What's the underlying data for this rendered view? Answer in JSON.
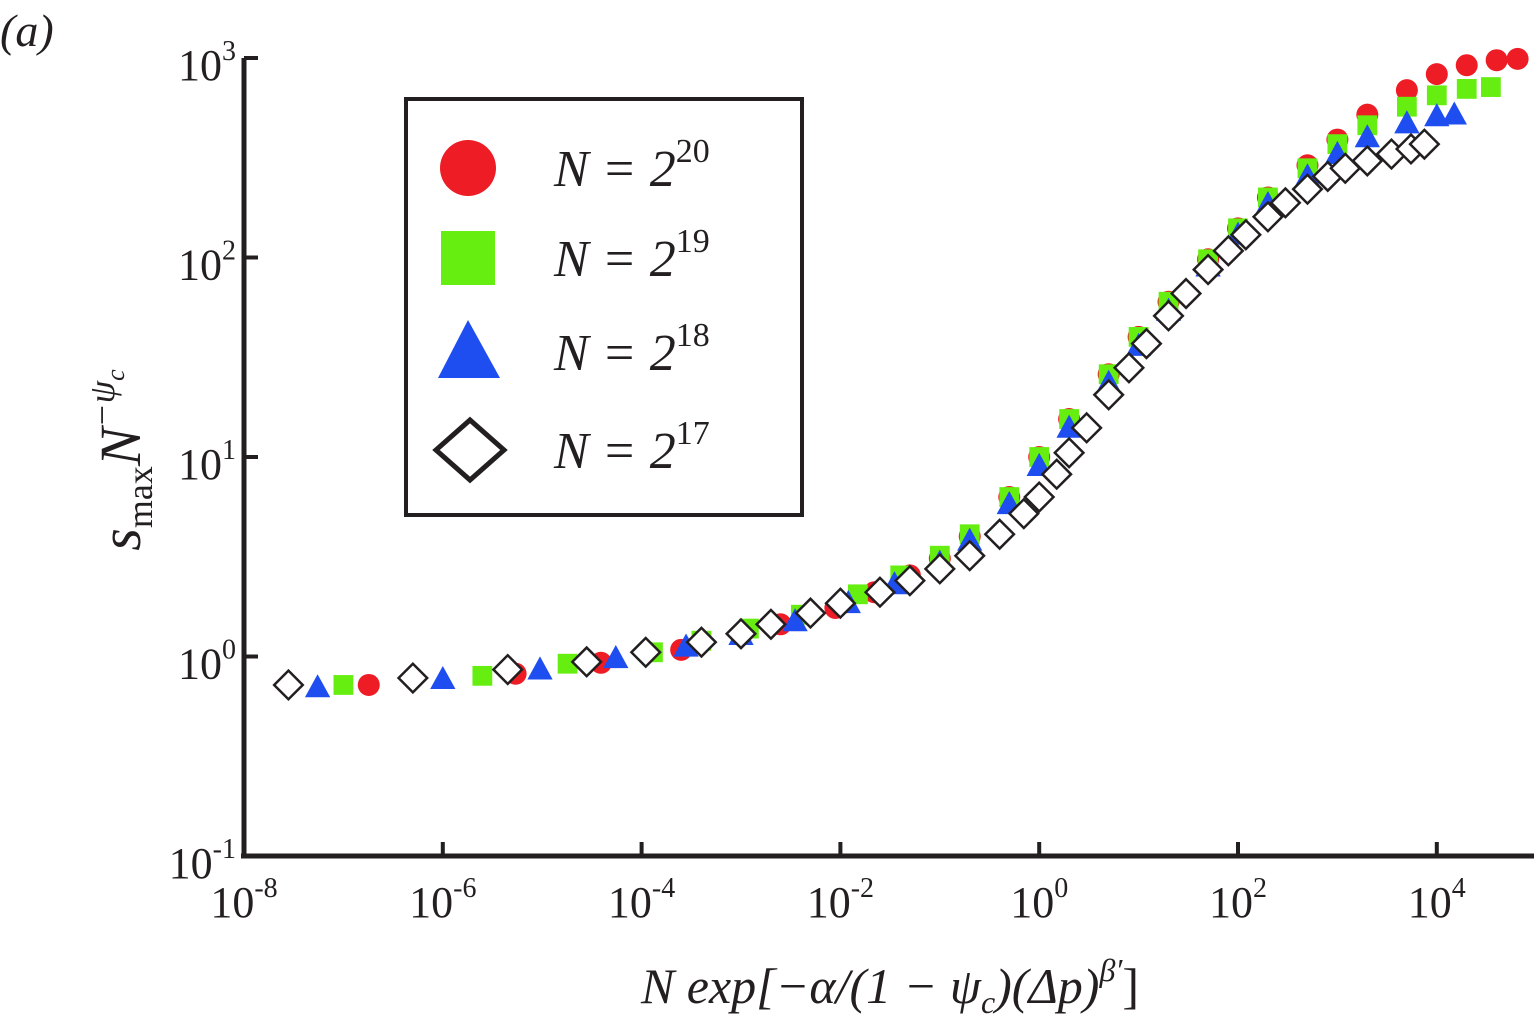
{
  "chart_data": {
    "type": "scatter",
    "panel_label": "(a)",
    "x_scale": "log",
    "y_scale": "log",
    "xlim": [
      1e-08,
      100000.0
    ],
    "ylim": [
      0.1,
      1000
    ],
    "xlabel": {
      "main": "N exp[−α/(1 − ψ",
      "sub": "c",
      "mid": ")(Δp)",
      "sup": "β′",
      "end": "]"
    },
    "ylabel": {
      "main": "s",
      "sub": "max",
      "mid": "N",
      "sup": "−ψ",
      "supsub": "c"
    },
    "x_ticks": [
      {
        "base": "10",
        "exp": "-8",
        "value": 1e-08
      },
      {
        "base": "10",
        "exp": "-6",
        "value": 1e-06
      },
      {
        "base": "10",
        "exp": "-4",
        "value": 0.0001
      },
      {
        "base": "10",
        "exp": "-2",
        "value": 0.01
      },
      {
        "base": "10",
        "exp": "0",
        "value": 1
      },
      {
        "base": "10",
        "exp": "2",
        "value": 100
      },
      {
        "base": "10",
        "exp": "4",
        "value": 10000
      }
    ],
    "y_ticks": [
      {
        "base": "10",
        "exp": "-1",
        "value": 0.1
      },
      {
        "base": "10",
        "exp": "0",
        "value": 1
      },
      {
        "base": "10",
        "exp": "1",
        "value": 10
      },
      {
        "base": "10",
        "exp": "2",
        "value": 100
      },
      {
        "base": "10",
        "exp": "3",
        "value": 1000
      }
    ],
    "legend": {
      "position": "top-left"
    },
    "series": [
      {
        "name": "N = 2^20",
        "legend_base": "N = 2",
        "legend_exp": "20",
        "marker": "circle",
        "color": "#ee1c24",
        "filled": true,
        "x": [
          1.8e-07,
          5.4e-06,
          3.9e-05,
          0.00025,
          0.0025,
          0.0089,
          0.022,
          0.05,
          0.1,
          0.2,
          0.5,
          1,
          2,
          5,
          10,
          20,
          50,
          100,
          200,
          500,
          1000,
          2000,
          5000,
          10000,
          20000,
          40000,
          65000
        ],
        "y": [
          0.72,
          0.82,
          0.93,
          1.08,
          1.45,
          1.75,
          2.1,
          2.55,
          3.1,
          4.0,
          6.3,
          10.0,
          15.5,
          26,
          40,
          60,
          98,
          140,
          200,
          290,
          390,
          520,
          690,
          830,
          920,
          975,
          990
        ]
      },
      {
        "name": "N = 2^19",
        "legend_base": "N = 2",
        "legend_exp": "19",
        "marker": "square",
        "color": "#66ee11",
        "filled": true,
        "x": [
          1e-07,
          2.5e-06,
          1.8e-05,
          0.00013,
          0.0004,
          0.0012,
          0.004,
          0.015,
          0.04,
          0.1,
          0.2,
          0.5,
          1,
          2,
          5,
          10,
          20,
          50,
          100,
          200,
          500,
          1000,
          2000,
          5000,
          10000,
          20000,
          35000
        ],
        "y": [
          0.72,
          0.8,
          0.92,
          1.05,
          1.2,
          1.38,
          1.62,
          2.05,
          2.55,
          3.2,
          4.1,
          6.3,
          10.0,
          15.5,
          26,
          40,
          60,
          98,
          140,
          200,
          280,
          370,
          460,
          570,
          650,
          700,
          715
        ]
      },
      {
        "name": "N = 2^18",
        "legend_base": "N = 2",
        "legend_exp": "18",
        "marker": "triangle",
        "color": "#1f4ef0",
        "filled": true,
        "x": [
          5.5e-08,
          1e-06,
          9.5e-06,
          5.5e-05,
          0.00028,
          0.001,
          0.0035,
          0.012,
          0.035,
          0.1,
          0.2,
          0.5,
          1,
          2,
          5,
          10,
          20,
          50,
          100,
          200,
          500,
          1000,
          2000,
          5000,
          10000,
          15000
        ],
        "y": [
          0.7,
          0.77,
          0.86,
          0.98,
          1.12,
          1.28,
          1.5,
          1.85,
          2.3,
          2.95,
          3.8,
          5.8,
          9.0,
          14,
          23.5,
          36,
          54,
          90,
          130,
          185,
          255,
          330,
          400,
          470,
          510,
          520
        ]
      },
      {
        "name": "N = 2^17",
        "legend_base": "N = 2",
        "legend_exp": "17",
        "marker": "diamond",
        "color": "#231f20",
        "filled": false,
        "x": [
          2.8e-08,
          5e-07,
          4.5e-06,
          2.8e-05,
          0.00011,
          0.0004,
          0.001,
          0.002,
          0.005,
          0.01,
          0.025,
          0.05,
          0.1,
          0.2,
          0.4,
          0.7,
          1,
          1.5,
          2,
          3,
          5,
          8,
          12,
          20,
          30,
          50,
          80,
          120,
          200,
          300,
          500,
          800,
          1200,
          2000,
          3500,
          5500,
          7500
        ],
        "y": [
          0.72,
          0.78,
          0.86,
          0.94,
          1.05,
          1.18,
          1.3,
          1.45,
          1.65,
          1.85,
          2.1,
          2.4,
          2.75,
          3.2,
          4.1,
          5.2,
          6.3,
          8.2,
          10.5,
          14,
          20.5,
          28,
          37,
          51,
          66,
          87,
          108,
          130,
          160,
          188,
          220,
          255,
          280,
          305,
          330,
          350,
          370
        ]
      }
    ]
  }
}
